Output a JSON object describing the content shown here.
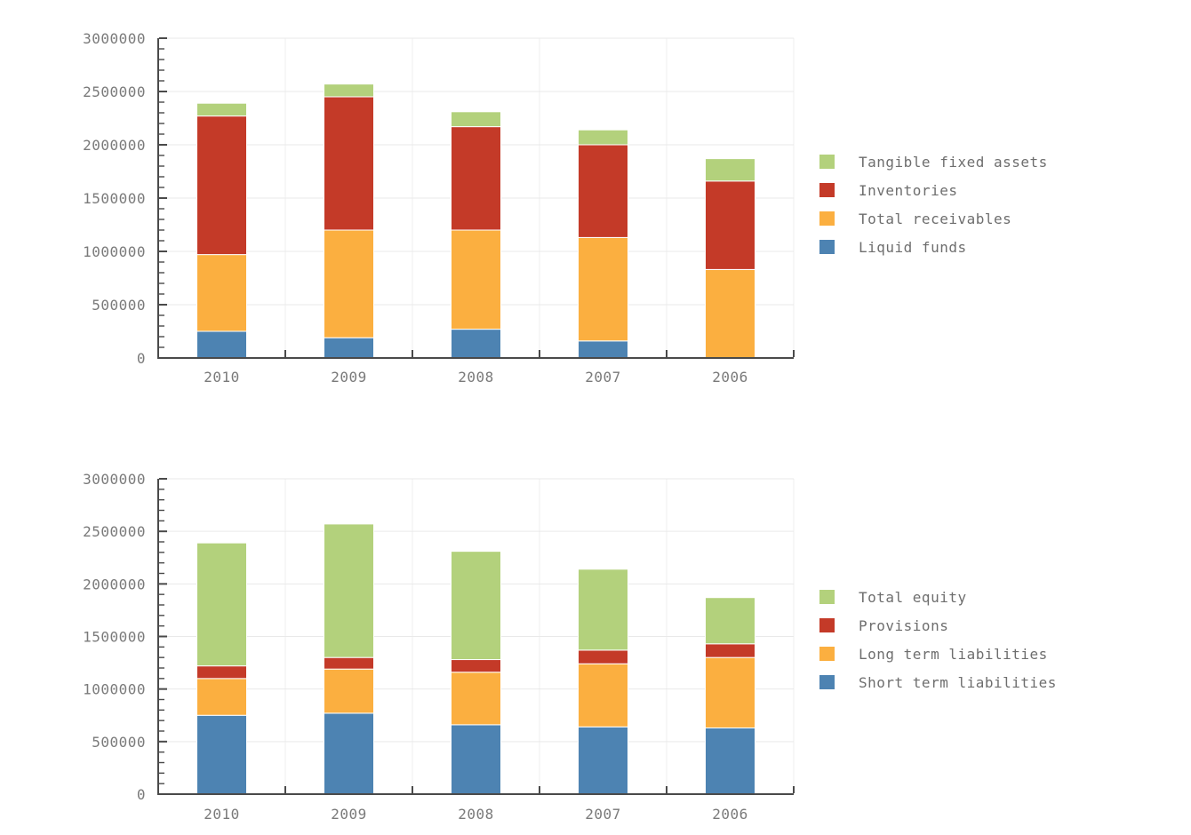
{
  "page": {
    "background_color": "#ffffff"
  },
  "style": {
    "axis_color": "#4a4a4a",
    "grid_color": "#e9e9e9",
    "vgrid_color": "#efefef",
    "tick_label_color": "#7a7a7a",
    "legend_text_color": "#6e6e6e",
    "segment_separator_color": "#ffffff"
  },
  "chart_data": [
    {
      "id": "assets",
      "type": "bar",
      "stacked": true,
      "title": "",
      "xlabel": "",
      "ylabel": "",
      "categories": [
        "2010",
        "2009",
        "2008",
        "2007",
        "2006"
      ],
      "ylim": [
        0,
        3000000
      ],
      "ytick_step": 500000,
      "yminor_step": 100000,
      "ytick_labels": [
        "0",
        "500000",
        "1000000",
        "1500000",
        "2000000",
        "2500000",
        "3000000"
      ],
      "grid": true,
      "legend_position": "right",
      "legend_order": "top-segment-first",
      "series": [
        {
          "name": "Tangible fixed assets",
          "color": "#b3d17c",
          "values": [
            120000,
            120000,
            140000,
            140000,
            210000
          ]
        },
        {
          "name": "Inventories",
          "color": "#c43a28",
          "values": [
            1300000,
            1250000,
            970000,
            870000,
            830000
          ]
        },
        {
          "name": "Total receivables",
          "color": "#fbaf40",
          "values": [
            720000,
            1010000,
            930000,
            970000,
            830000
          ]
        },
        {
          "name": "Liquid funds",
          "color": "#4d83b2",
          "values": [
            250000,
            190000,
            270000,
            160000,
            0
          ]
        }
      ],
      "stack_totals": [
        2390000,
        2570000,
        2310000,
        2140000,
        1870000
      ]
    },
    {
      "id": "equity-liabilities",
      "type": "bar",
      "stacked": true,
      "title": "",
      "xlabel": "",
      "ylabel": "",
      "categories": [
        "2010",
        "2009",
        "2008",
        "2007",
        "2006"
      ],
      "ylim": [
        0,
        3000000
      ],
      "ytick_step": 500000,
      "yminor_step": 100000,
      "ytick_labels": [
        "0",
        "500000",
        "1000000",
        "1500000",
        "2000000",
        "2500000",
        "3000000"
      ],
      "grid": true,
      "legend_position": "right",
      "legend_order": "top-segment-first",
      "series": [
        {
          "name": "Total equity",
          "color": "#b3d17c",
          "values": [
            1170000,
            1270000,
            1030000,
            770000,
            440000
          ]
        },
        {
          "name": "Provisions",
          "color": "#c43a28",
          "values": [
            120000,
            110000,
            120000,
            130000,
            130000
          ]
        },
        {
          "name": "Long term liabilities",
          "color": "#fbaf40",
          "values": [
            350000,
            420000,
            500000,
            600000,
            670000
          ]
        },
        {
          "name": "Short term liabilities",
          "color": "#4d83b2",
          "values": [
            750000,
            770000,
            660000,
            640000,
            630000
          ]
        }
      ],
      "stack_totals": [
        2390000,
        2570000,
        2310000,
        2140000,
        1870000
      ]
    }
  ]
}
